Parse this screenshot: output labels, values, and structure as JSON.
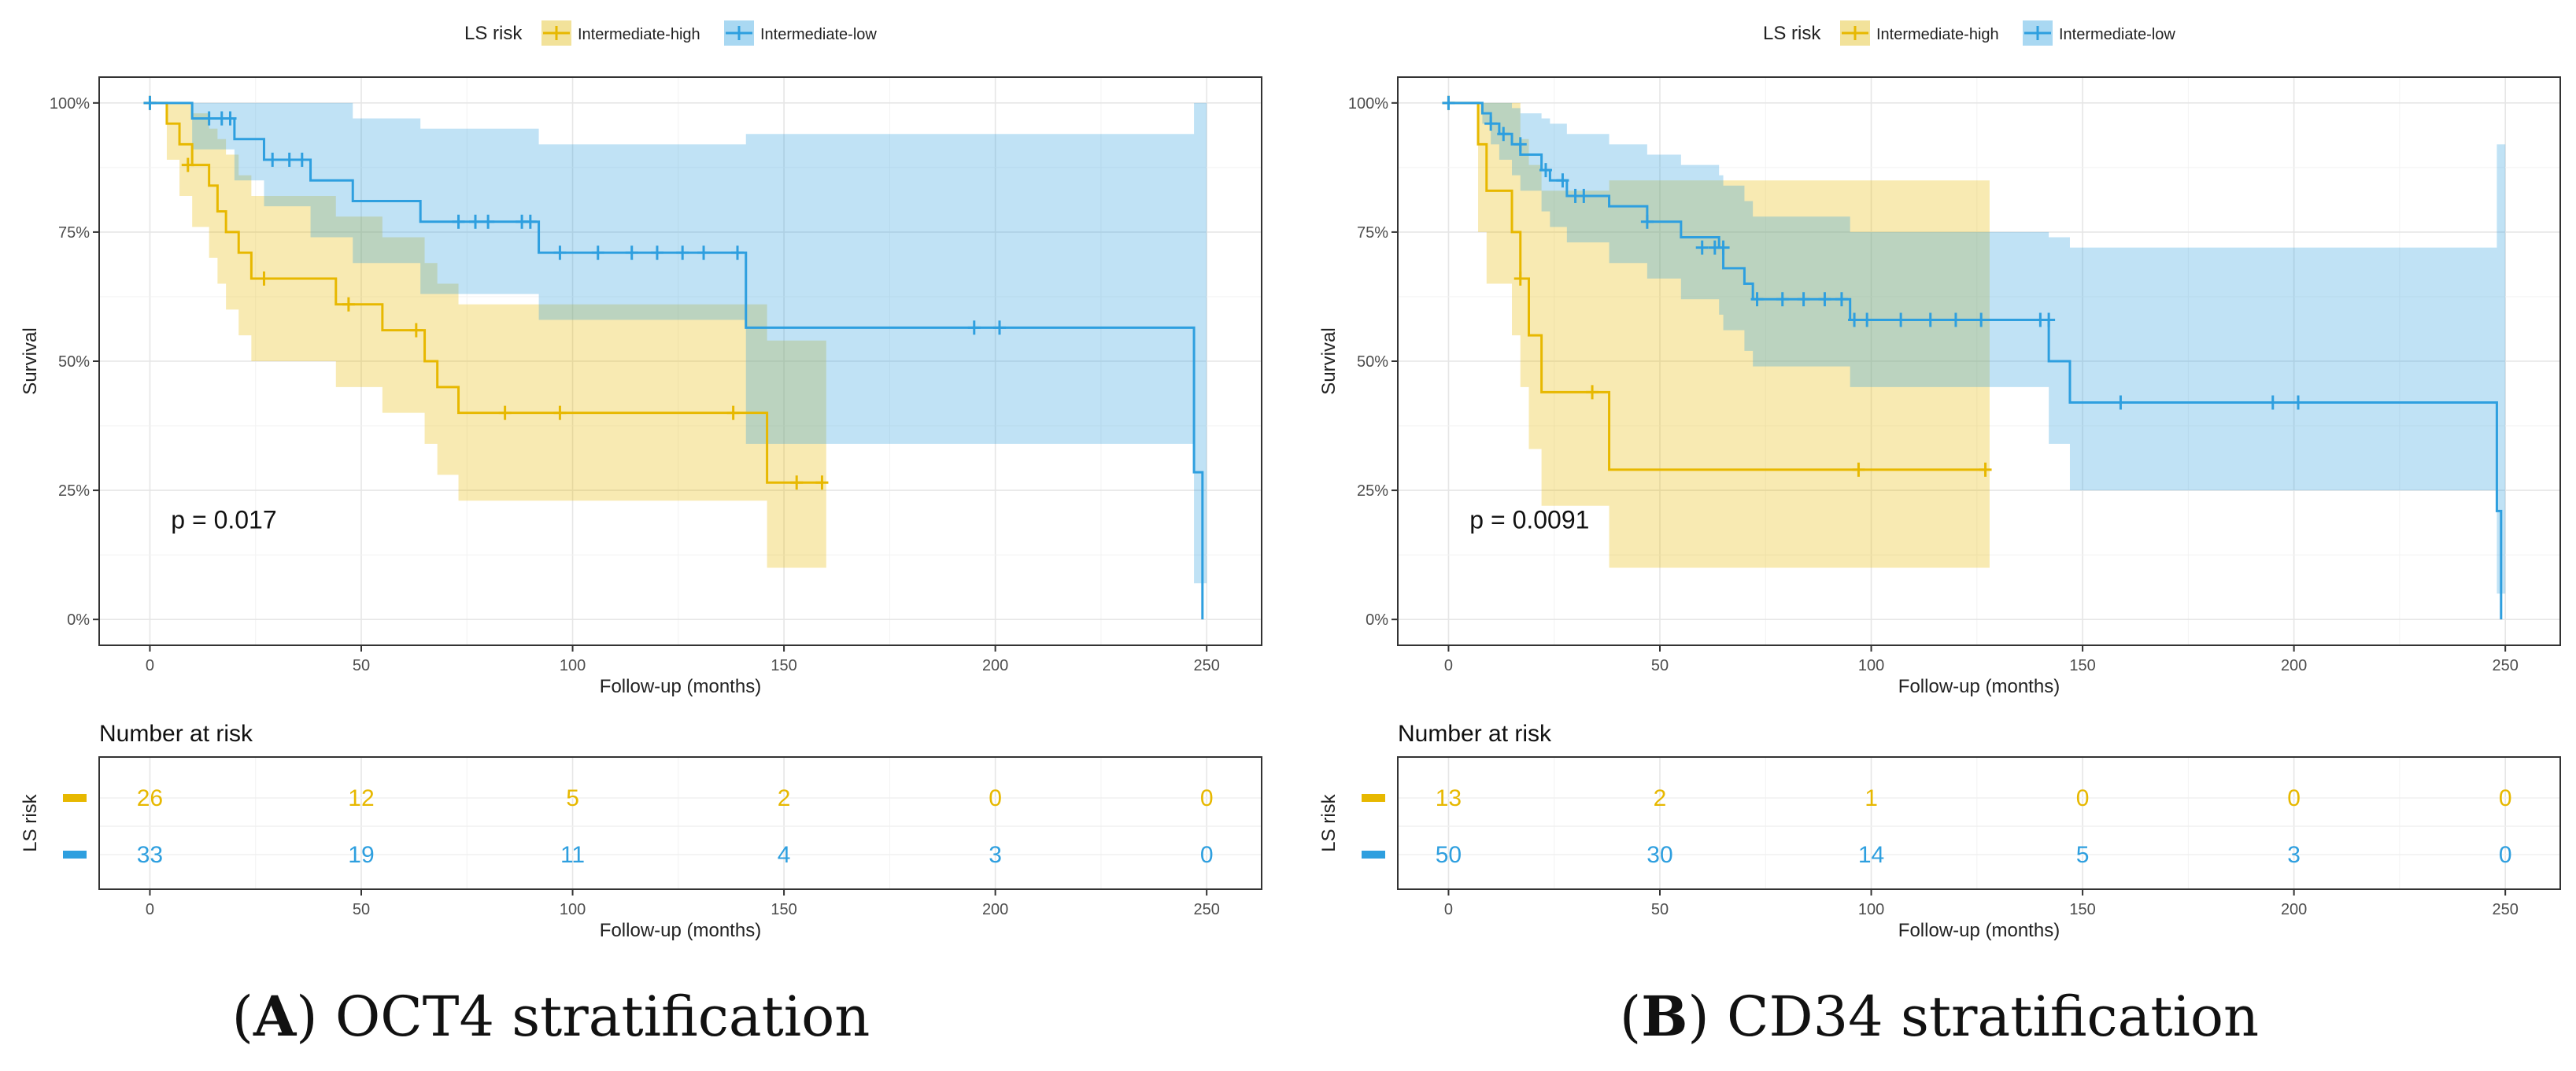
{
  "legend_title": "LS risk",
  "series_names": [
    "Intermediate-high",
    "Intermediate-low"
  ],
  "colors": {
    "high": "#E7B800",
    "low": "#2E9FDF",
    "high_band": "#f2e29a",
    "low_band": "#a9d8f2",
    "overlap_band": "#bcd1a0"
  },
  "chart_data": [
    {
      "type": "line",
      "id": "A",
      "title": "OCT4 stratification",
      "caption_letter": "A",
      "xlabel": "Follow-up (months)",
      "ylabel": "Survival",
      "xlim": [
        -12,
        263
      ],
      "ylim": [
        -5,
        105
      ],
      "xticks": [
        0,
        50,
        100,
        150,
        200,
        250
      ],
      "yticks": [
        0,
        25,
        50,
        75,
        100
      ],
      "ytick_labels": [
        "0%",
        "25%",
        "50%",
        "75%",
        "100%"
      ],
      "pvalue_text": "p = 0.017",
      "series": [
        {
          "name": "Intermediate-high",
          "steps": [
            [
              0,
              100
            ],
            [
              4,
              96
            ],
            [
              7,
              92
            ],
            [
              10,
              88
            ],
            [
              14,
              84
            ],
            [
              16,
              79
            ],
            [
              18,
              75
            ],
            [
              21,
              71
            ],
            [
              24,
              66
            ],
            [
              44,
              61
            ],
            [
              55,
              56
            ],
            [
              64,
              56
            ],
            [
              65,
              50
            ],
            [
              68,
              45
            ],
            [
              73,
              40
            ],
            [
              138,
              40
            ],
            [
              146,
              26.5
            ],
            [
              159,
              26.5
            ]
          ],
          "upper": [
            [
              0,
              100
            ],
            [
              4,
              100
            ],
            [
              7,
              100
            ],
            [
              10,
              98
            ],
            [
              14,
              95
            ],
            [
              16,
              93
            ],
            [
              18,
              90
            ],
            [
              21,
              86
            ],
            [
              24,
              82
            ],
            [
              44,
              78
            ],
            [
              55,
              74
            ],
            [
              65,
              69
            ],
            [
              68,
              65
            ],
            [
              73,
              61
            ],
            [
              138,
              61
            ],
            [
              146,
              54
            ],
            [
              159,
              54
            ]
          ],
          "lower": [
            [
              0,
              100
            ],
            [
              4,
              89
            ],
            [
              7,
              82
            ],
            [
              10,
              76
            ],
            [
              14,
              70
            ],
            [
              16,
              65
            ],
            [
              18,
              60
            ],
            [
              21,
              55
            ],
            [
              24,
              50
            ],
            [
              44,
              45
            ],
            [
              55,
              40
            ],
            [
              65,
              34
            ],
            [
              68,
              28
            ],
            [
              73,
              23
            ],
            [
              138,
              23
            ],
            [
              146,
              10
            ],
            [
              159,
              10
            ]
          ],
          "censor": [
            [
              0,
              100
            ],
            [
              9,
              88
            ],
            [
              27,
              66
            ],
            [
              47,
              61
            ],
            [
              63,
              56
            ],
            [
              84,
              40
            ],
            [
              97,
              40
            ],
            [
              138,
              40
            ],
            [
              153,
              26.5
            ],
            [
              159,
              26.5
            ]
          ]
        },
        {
          "name": "Intermediate-low",
          "steps": [
            [
              0,
              100
            ],
            [
              10,
              97
            ],
            [
              20,
              93
            ],
            [
              27,
              89
            ],
            [
              38,
              85
            ],
            [
              48,
              81
            ],
            [
              64,
              77
            ],
            [
              92,
              71
            ],
            [
              141,
              56.5
            ],
            [
              247,
              28.5
            ],
            [
              249,
              0
            ]
          ],
          "upper": [
            [
              0,
              100
            ],
            [
              10,
              100
            ],
            [
              20,
              100
            ],
            [
              27,
              100
            ],
            [
              38,
              100
            ],
            [
              48,
              97
            ],
            [
              64,
              95
            ],
            [
              92,
              92
            ],
            [
              141,
              94
            ],
            [
              247,
              100
            ],
            [
              249,
              100
            ]
          ],
          "lower": [
            [
              0,
              100
            ],
            [
              10,
              91
            ],
            [
              20,
              85
            ],
            [
              27,
              80
            ],
            [
              38,
              74
            ],
            [
              48,
              69
            ],
            [
              64,
              63
            ],
            [
              92,
              58
            ],
            [
              141,
              34
            ],
            [
              247,
              7
            ],
            [
              249,
              7
            ]
          ],
          "censor": [
            [
              0,
              100
            ],
            [
              14,
              97
            ],
            [
              17,
              97
            ],
            [
              19,
              97
            ],
            [
              29,
              89
            ],
            [
              33,
              89
            ],
            [
              36,
              89
            ],
            [
              73,
              77
            ],
            [
              77,
              77
            ],
            [
              80,
              77
            ],
            [
              88,
              77
            ],
            [
              90,
              77
            ],
            [
              97,
              71
            ],
            [
              106,
              71
            ],
            [
              114,
              71
            ],
            [
              120,
              71
            ],
            [
              126,
              71
            ],
            [
              131,
              71
            ],
            [
              139,
              71
            ],
            [
              195,
              56.5
            ],
            [
              201,
              56.5
            ]
          ]
        }
      ],
      "risk_table": {
        "title": "Number at risk",
        "ylabel": "LS risk",
        "times": [
          0,
          50,
          100,
          150,
          200,
          250
        ],
        "high": [
          "26",
          "12",
          "5",
          "2",
          "0",
          "0"
        ],
        "low": [
          "33",
          "19",
          "11",
          "4",
          "3",
          "0"
        ]
      }
    },
    {
      "type": "line",
      "id": "B",
      "title": "CD34 stratification",
      "caption_letter": "B",
      "xlabel": "Follow-up (months)",
      "ylabel": "Survival",
      "xlim": [
        -12,
        263
      ],
      "ylim": [
        -5,
        105
      ],
      "xticks": [
        0,
        50,
        100,
        150,
        200,
        250
      ],
      "yticks": [
        0,
        25,
        50,
        75,
        100
      ],
      "ytick_labels": [
        "0%",
        "25%",
        "50%",
        "75%",
        "100%"
      ],
      "pvalue_text": "p = 0.0091",
      "series": [
        {
          "name": "Intermediate-high",
          "steps": [
            [
              0,
              100
            ],
            [
              7,
              92
            ],
            [
              9,
              83
            ],
            [
              15,
              75
            ],
            [
              17,
              66
            ],
            [
              19,
              55
            ],
            [
              22,
              44
            ],
            [
              38,
              29
            ],
            [
              127,
              29
            ]
          ],
          "upper": [
            [
              0,
              100
            ],
            [
              7,
              100
            ],
            [
              9,
              100
            ],
            [
              15,
              100
            ],
            [
              17,
              93
            ],
            [
              19,
              88
            ],
            [
              22,
              83
            ],
            [
              38,
              85
            ],
            [
              127,
              85
            ]
          ],
          "lower": [
            [
              0,
              100
            ],
            [
              7,
              75
            ],
            [
              9,
              65
            ],
            [
              15,
              55
            ],
            [
              17,
              45
            ],
            [
              19,
              33
            ],
            [
              22,
              22
            ],
            [
              38,
              10
            ],
            [
              127,
              10
            ]
          ],
          "censor": [
            [
              0,
              100
            ],
            [
              17,
              66
            ],
            [
              34,
              44
            ],
            [
              97,
              29
            ],
            [
              127,
              29
            ]
          ]
        },
        {
          "name": "Intermediate-low",
          "steps": [
            [
              0,
              100
            ],
            [
              8,
              98
            ],
            [
              10,
              96
            ],
            [
              12,
              94
            ],
            [
              15,
              92
            ],
            [
              17,
              90
            ],
            [
              22,
              87
            ],
            [
              24,
              85
            ],
            [
              28,
              82
            ],
            [
              38,
              80
            ],
            [
              47,
              77
            ],
            [
              55,
              74
            ],
            [
              64,
              72
            ],
            [
              65,
              68
            ],
            [
              70,
              65
            ],
            [
              72,
              62
            ],
            [
              95,
              58
            ],
            [
              141,
              58
            ],
            [
              142,
              50
            ],
            [
              147,
              42
            ],
            [
              248,
              21
            ],
            [
              249,
              0
            ]
          ],
          "upper": [
            [
              0,
              100
            ],
            [
              8,
              100
            ],
            [
              10,
              100
            ],
            [
              12,
              100
            ],
            [
              15,
              99
            ],
            [
              17,
              98
            ],
            [
              22,
              97
            ],
            [
              24,
              96
            ],
            [
              28,
              94
            ],
            [
              38,
              92
            ],
            [
              47,
              90
            ],
            [
              55,
              88
            ],
            [
              64,
              86
            ],
            [
              65,
              84
            ],
            [
              70,
              81
            ],
            [
              72,
              78
            ],
            [
              95,
              75
            ],
            [
              141,
              75
            ],
            [
              142,
              74
            ],
            [
              147,
              72
            ],
            [
              248,
              92
            ],
            [
              249,
              92
            ]
          ],
          "lower": [
            [
              0,
              100
            ],
            [
              8,
              96
            ],
            [
              10,
              92
            ],
            [
              12,
              89
            ],
            [
              15,
              86
            ],
            [
              17,
              83
            ],
            [
              22,
              79
            ],
            [
              24,
              76
            ],
            [
              28,
              73
            ],
            [
              38,
              69
            ],
            [
              47,
              66
            ],
            [
              55,
              62
            ],
            [
              64,
              59
            ],
            [
              65,
              56
            ],
            [
              70,
              52
            ],
            [
              72,
              49
            ],
            [
              95,
              45
            ],
            [
              141,
              45
            ],
            [
              142,
              34
            ],
            [
              147,
              25
            ],
            [
              248,
              5
            ],
            [
              249,
              5
            ]
          ],
          "censor": [
            [
              0,
              100
            ],
            [
              10,
              96
            ],
            [
              13,
              94
            ],
            [
              17,
              92
            ],
            [
              23,
              87
            ],
            [
              27,
              85
            ],
            [
              30,
              82
            ],
            [
              32,
              82
            ],
            [
              47,
              77
            ],
            [
              60,
              72
            ],
            [
              63,
              72
            ],
            [
              65,
              72
            ],
            [
              73,
              62
            ],
            [
              79,
              62
            ],
            [
              84,
              62
            ],
            [
              89,
              62
            ],
            [
              93,
              62
            ],
            [
              96,
              58
            ],
            [
              99,
              58
            ],
            [
              107,
              58
            ],
            [
              114,
              58
            ],
            [
              120,
              58
            ],
            [
              126,
              58
            ],
            [
              140,
              58
            ],
            [
              142,
              58
            ],
            [
              159,
              42
            ],
            [
              195,
              42
            ],
            [
              201,
              42
            ]
          ]
        }
      ],
      "risk_table": {
        "title": "Number at risk",
        "ylabel": "LS risk",
        "times": [
          0,
          50,
          100,
          150,
          200,
          250
        ],
        "high": [
          "13",
          "2",
          "1",
          "0",
          "0",
          "0"
        ],
        "low": [
          "50",
          "30",
          "14",
          "5",
          "3",
          "0"
        ]
      }
    }
  ]
}
